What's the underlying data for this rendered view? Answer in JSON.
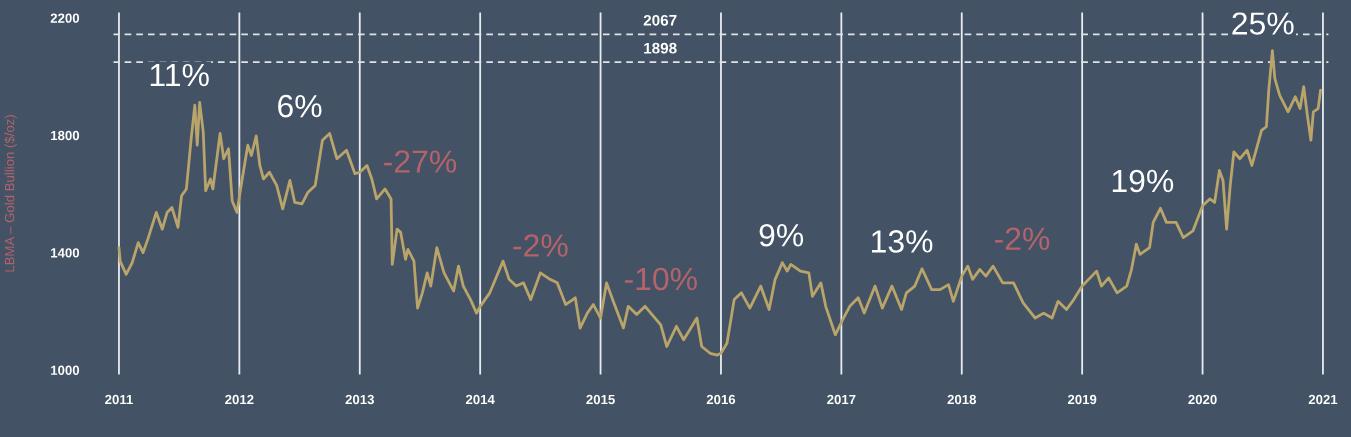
{
  "chart_data": {
    "type": "line",
    "ylabel": "LBMA – Gold Bullion ($/oz)",
    "x": [
      2011.0,
      2011.01,
      2011.06,
      2011.11,
      2011.16,
      2011.2,
      2011.24,
      2011.31,
      2011.36,
      2011.4,
      2011.44,
      2011.49,
      2011.52,
      2011.56,
      2011.6,
      2011.63,
      2011.65,
      2011.67,
      2011.7,
      2011.72,
      2011.76,
      2011.78,
      2011.84,
      2011.87,
      2011.91,
      2011.94,
      2011.98,
      2012.01,
      2012.07,
      2012.1,
      2012.14,
      2012.17,
      2012.2,
      2012.25,
      2012.31,
      2012.36,
      2012.42,
      2012.46,
      2012.52,
      2012.57,
      2012.63,
      2012.69,
      2012.75,
      2012.81,
      2012.89,
      2012.96,
      2013.0,
      2013.06,
      2013.1,
      2013.14,
      2013.21,
      2013.26,
      2013.27,
      2013.31,
      2013.34,
      2013.38,
      2013.4,
      2013.45,
      2013.48,
      2013.52,
      2013.56,
      2013.59,
      2013.64,
      2013.7,
      2013.78,
      2013.82,
      2013.86,
      2013.92,
      2013.97,
      2014.0,
      2014.08,
      2014.19,
      2014.24,
      2014.3,
      2014.36,
      2014.42,
      2014.5,
      2014.58,
      2014.64,
      2014.71,
      2014.79,
      2014.83,
      2014.89,
      2014.94,
      2015.0,
      2015.05,
      2015.11,
      2015.19,
      2015.23,
      2015.3,
      2015.37,
      2015.44,
      2015.5,
      2015.55,
      2015.63,
      2015.69,
      2015.75,
      2015.8,
      2015.84,
      2015.91,
      2015.97,
      2016.0,
      2016.05,
      2016.11,
      2016.17,
      2016.24,
      2016.33,
      2016.4,
      2016.45,
      2016.51,
      2016.55,
      2016.58,
      2016.66,
      2016.73,
      2016.76,
      2016.83,
      2016.87,
      2016.95,
      2017.01,
      2017.07,
      2017.14,
      2017.19,
      2017.28,
      2017.34,
      2017.42,
      2017.5,
      2017.54,
      2017.61,
      2017.67,
      2017.75,
      2017.82,
      2017.89,
      2017.93,
      2018.0,
      2018.05,
      2018.09,
      2018.15,
      2018.2,
      2018.26,
      2018.34,
      2018.43,
      2018.51,
      2018.61,
      2018.68,
      2018.75,
      2018.8,
      2018.87,
      2018.93,
      2019.0,
      2019.08,
      2019.12,
      2019.16,
      2019.22,
      2019.29,
      2019.37,
      2019.41,
      2019.45,
      2019.48,
      2019.56,
      2019.59,
      2019.65,
      2019.7,
      2019.78,
      2019.84,
      2019.92,
      2020.0,
      2020.06,
      2020.1,
      2020.14,
      2020.17,
      2020.2,
      2020.23,
      2020.26,
      2020.31,
      2020.37,
      2020.41,
      2020.49,
      2020.53,
      2020.55,
      2020.58,
      2020.6,
      2020.64,
      2020.71,
      2020.77,
      2020.81,
      2020.84,
      2020.87,
      2020.9,
      2020.92,
      2020.96,
      2020.98
    ],
    "series": [
      {
        "color": "#b9a46a",
        "values": [
          1417,
          1371,
          1326,
          1366,
          1434,
          1400,
          1446,
          1537,
          1480,
          1537,
          1554,
          1486,
          1594,
          1617,
          1789,
          1903,
          1766,
          1912,
          1811,
          1611,
          1651,
          1617,
          1806,
          1720,
          1754,
          1577,
          1537,
          1617,
          1766,
          1731,
          1798,
          1697,
          1651,
          1674,
          1629,
          1549,
          1646,
          1571,
          1566,
          1606,
          1629,
          1783,
          1806,
          1720,
          1749,
          1669,
          1674,
          1697,
          1651,
          1583,
          1617,
          1583,
          1360,
          1480,
          1469,
          1377,
          1411,
          1371,
          1211,
          1263,
          1331,
          1286,
          1417,
          1331,
          1269,
          1354,
          1286,
          1240,
          1194,
          1217,
          1263,
          1371,
          1309,
          1286,
          1297,
          1240,
          1331,
          1309,
          1297,
          1223,
          1246,
          1143,
          1194,
          1223,
          1177,
          1297,
          1229,
          1143,
          1217,
          1189,
          1217,
          1183,
          1154,
          1080,
          1149,
          1103,
          1143,
          1177,
          1080,
          1057,
          1051,
          1057,
          1091,
          1240,
          1263,
          1211,
          1286,
          1206,
          1309,
          1366,
          1337,
          1360,
          1337,
          1331,
          1251,
          1297,
          1217,
          1120,
          1171,
          1217,
          1246,
          1194,
          1286,
          1211,
          1286,
          1206,
          1263,
          1286,
          1345,
          1274,
          1274,
          1291,
          1234,
          1320,
          1354,
          1309,
          1343,
          1320,
          1354,
          1297,
          1297,
          1229,
          1177,
          1194,
          1177,
          1234,
          1206,
          1240,
          1286,
          1320,
          1337,
          1286,
          1314,
          1263,
          1286,
          1343,
          1429,
          1394,
          1417,
          1503,
          1551,
          1503,
          1503,
          1451,
          1474,
          1560,
          1583,
          1571,
          1680,
          1646,
          1480,
          1629,
          1743,
          1720,
          1749,
          1697,
          1817,
          1829,
          1954,
          2088,
          1994,
          1937,
          1880,
          1931,
          1891,
          1966,
          1869,
          1783,
          1880,
          1891,
          1954
        ]
      }
    ],
    "xlim": [
      2010.95,
      2021.05
    ],
    "xticks": [
      2011,
      2012,
      2013,
      2014,
      2015,
      2016,
      2017,
      2018,
      2019,
      2020,
      2021
    ],
    "ylim": [
      983,
      2220
    ],
    "yticks": [
      1000,
      1400,
      1800,
      2200
    ],
    "grid": "x",
    "ref_lines": [
      {
        "axis": "y",
        "value": 2144,
        "color": "#dfe3e8",
        "line_style": "dashed"
      },
      {
        "axis": "y",
        "value": 2049,
        "color": "#dfe3e8",
        "line_style": "dashed"
      }
    ],
    "annotations": [
      "2067",
      "1898",
      "11%",
      "6%",
      "-27%",
      "-2%",
      "-10%",
      "9%",
      "13%",
      "-2%",
      "19%",
      "25%"
    ]
  }
}
